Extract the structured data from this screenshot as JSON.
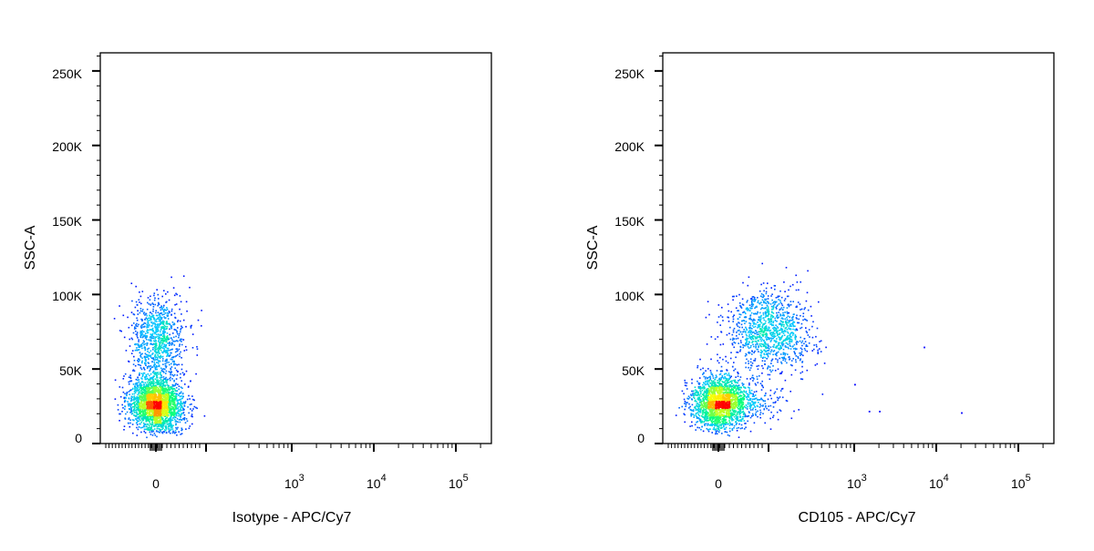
{
  "charts": [
    {
      "id": "left",
      "ylabel": "SSC-A",
      "xlabel": "Isotype - APC/Cy7",
      "population": "isotype"
    },
    {
      "id": "right",
      "ylabel": "SSC-A",
      "xlabel": "CD105 - APC/Cy7",
      "population": "cd105"
    }
  ],
  "axes": {
    "y_ticks": [
      {
        "value": 0,
        "label": "0"
      },
      {
        "value": 50000,
        "label": "50K"
      },
      {
        "value": 100000,
        "label": "100K"
      },
      {
        "value": 150000,
        "label": "150K"
      },
      {
        "value": 200000,
        "label": "200K"
      },
      {
        "value": 250000,
        "label": "250K"
      }
    ],
    "x_ticks": [
      {
        "label": "0",
        "exp": ""
      },
      {
        "label": "10",
        "exp": "3"
      },
      {
        "label": "10",
        "exp": "4"
      },
      {
        "label": "10",
        "exp": "5"
      }
    ]
  },
  "chart_data": [
    {
      "type": "scatter",
      "title": "",
      "xlabel": "Isotype - APC/Cy7",
      "ylabel": "SSC-A",
      "x_scale": "biexponential",
      "ylim": [
        0,
        262144
      ],
      "density_colormap": [
        "#0000ff",
        "#00c8ff",
        "#00ff80",
        "#ffff00",
        "#ff0000"
      ],
      "populations": [
        {
          "name": "",
          "x_center": 0,
          "y_center": 27000,
          "y_spread": 9000,
          "fraction": 0.72
        },
        {
          "name": "",
          "x_center": 0,
          "y_center": 70000,
          "y_spread": 15000,
          "fraction": 0.28
        }
      ]
    },
    {
      "type": "scatter",
      "title": "",
      "xlabel": "CD105 - APC/Cy7",
      "ylabel": "SSC-A",
      "x_scale": "biexponential",
      "ylim": [
        0,
        262144
      ],
      "density_colormap": [
        "#0000ff",
        "#00c8ff",
        "#00ff80",
        "#ffff00",
        "#ff0000"
      ],
      "populations": [
        {
          "name": "",
          "x_center": 0,
          "y_center": 28000,
          "y_spread": 9000,
          "fraction": 0.55
        },
        {
          "name": "",
          "x_center": 300,
          "y_center": 75000,
          "y_spread": 14000,
          "fraction": 0.35
        },
        {
          "name": "",
          "x_center": 150,
          "y_center": 28000,
          "y_spread": 6000,
          "fraction": 0.1
        }
      ],
      "outliers": [
        {
          "x": 1000,
          "y": 40000
        },
        {
          "x": 1500,
          "y": 22000
        },
        {
          "x": 2000,
          "y": 22000
        },
        {
          "x": 7000,
          "y": 65000
        },
        {
          "x": 20000,
          "y": 21000
        }
      ]
    }
  ]
}
